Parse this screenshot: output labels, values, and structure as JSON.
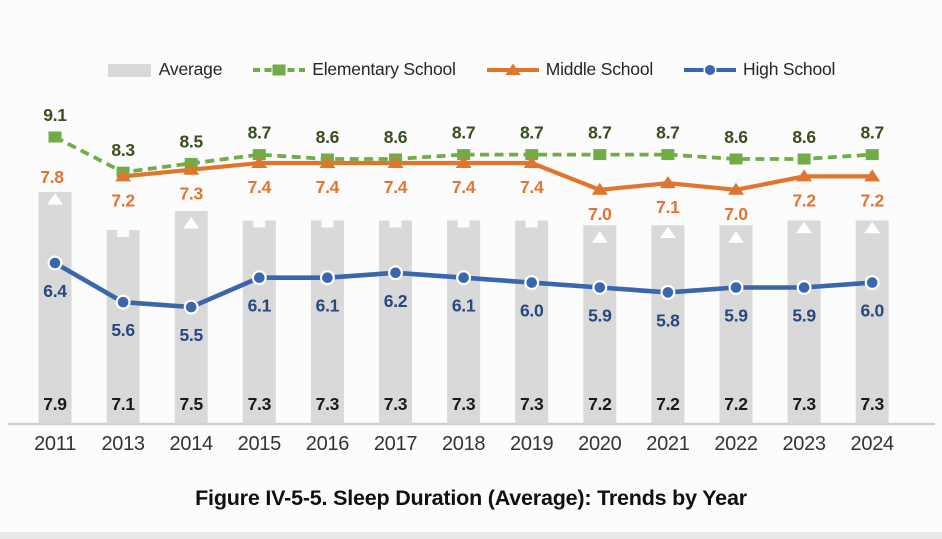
{
  "chart_data": {
    "type": "combo",
    "title": "Figure IV-5-5. Sleep Duration (Average): Trends by Year",
    "categories": [
      "2011",
      "2013",
      "2014",
      "2015",
      "2016",
      "2017",
      "2018",
      "2019",
      "2020",
      "2021",
      "2022",
      "2023",
      "2024"
    ],
    "series": [
      {
        "name": "Average",
        "type": "bar",
        "color": "#d9d9d9",
        "value_label_color": "#1a1a1a",
        "values": [
          7.9,
          7.1,
          7.5,
          7.3,
          7.3,
          7.3,
          7.3,
          7.3,
          7.2,
          7.2,
          7.2,
          7.3,
          7.3
        ]
      },
      {
        "name": "Elementary School",
        "type": "line",
        "line_style": "dashed",
        "marker": "square",
        "color": "#70ad47",
        "value_label_color": "#3a4e1f",
        "values": [
          9.1,
          8.3,
          8.5,
          8.7,
          8.6,
          8.6,
          8.7,
          8.7,
          8.7,
          8.7,
          8.6,
          8.6,
          8.7
        ]
      },
      {
        "name": "Middle School",
        "type": "line",
        "line_style": "solid",
        "marker": "triangle",
        "color": "#e2752e",
        "value_label_color": "#e2752e",
        "values": [
          7.8,
          7.2,
          7.3,
          7.4,
          7.4,
          7.4,
          7.4,
          7.4,
          7.0,
          7.1,
          7.0,
          7.2,
          7.2
        ],
        "note": "line drawn from 2013 onward; markers overlapping the bars appear as white cutouts"
      },
      {
        "name": "High School",
        "type": "line",
        "line_style": "solid",
        "marker": "circle",
        "color": "#3a66ad",
        "value_label_color": "#27477e",
        "values": [
          6.4,
          5.6,
          5.5,
          6.1,
          6.1,
          6.2,
          6.1,
          6.0,
          5.9,
          5.8,
          5.9,
          5.9,
          6.0
        ]
      }
    ],
    "xlabel": "",
    "ylabel": "",
    "grid": "off",
    "legend_position": "top",
    "axis_line_color": "#cfcfcf",
    "year_label_color": "#333333",
    "background_color": "#fcfcfc"
  }
}
